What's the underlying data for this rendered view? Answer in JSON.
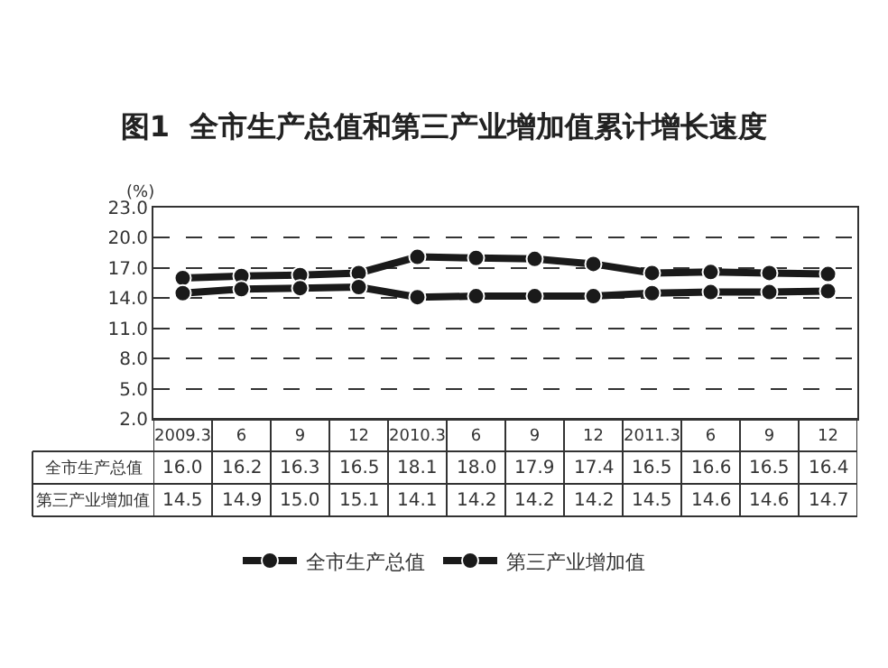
{
  "chart_data": {
    "type": "line",
    "title": "图1  全市生产总值和第三产业增加值累计增长速度",
    "ylabel": "(%)",
    "categories": [
      "2009.3",
      "6",
      "9",
      "12",
      "2010.3",
      "6",
      "9",
      "12",
      "2011.3",
      "6",
      "9",
      "12"
    ],
    "series": [
      {
        "name": "全市生产总值",
        "color": "#1a1a1a",
        "values": [
          16.0,
          16.2,
          16.3,
          16.5,
          18.1,
          18.0,
          17.9,
          17.4,
          16.5,
          16.6,
          16.5,
          16.4
        ],
        "value_labels": [
          "16.0",
          "16.2",
          "16.3",
          "16.5",
          "18.1",
          "18.0",
          "17.9",
          "17.4",
          "16.5",
          "16.6",
          "16.5",
          "16.4"
        ]
      },
      {
        "name": "第三产业增加值",
        "color": "#1a1a1a",
        "values": [
          14.5,
          14.9,
          15.0,
          15.1,
          14.1,
          14.2,
          14.2,
          14.2,
          14.5,
          14.6,
          14.6,
          14.7
        ],
        "value_labels": [
          "14.5",
          "14.9",
          "15.0",
          "15.1",
          "14.1",
          "14.2",
          "14.2",
          "14.2",
          "14.5",
          "14.6",
          "14.6",
          "14.7"
        ]
      }
    ],
    "ylim": [
      2.0,
      23.0
    ],
    "yticks": [
      {
        "value": 2,
        "label": "2.0"
      },
      {
        "value": 5,
        "label": "5.0"
      },
      {
        "value": 8,
        "label": "8.0"
      },
      {
        "value": 11,
        "label": "11.0"
      },
      {
        "value": 14,
        "label": "14.0"
      },
      {
        "value": 17,
        "label": "17.0"
      },
      {
        "value": 20,
        "label": "20.0"
      },
      {
        "value": 23,
        "label": "23.0"
      }
    ],
    "grid": "y",
    "legend": "bottom",
    "marker": "circle",
    "line_style": "solid"
  }
}
